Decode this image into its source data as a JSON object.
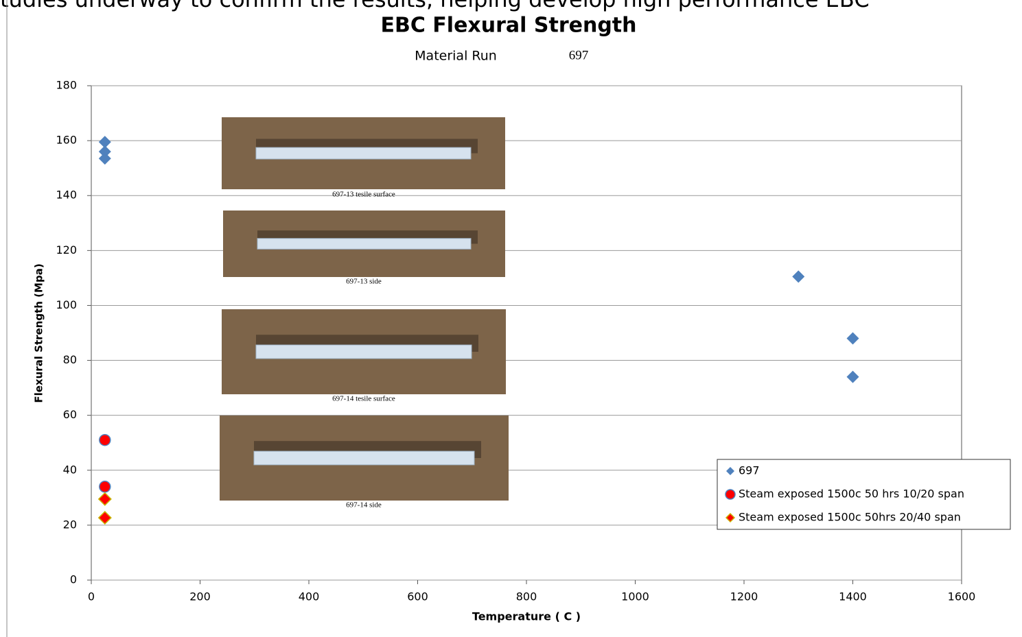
{
  "slide_text": "tudies underway to confirm the results, helping develop high performance EBC",
  "chart_data": {
    "type": "scatter",
    "title": "EBC Flexural Strength",
    "subtitle": [
      "Material  Run",
      "697"
    ],
    "x_label": "Temperature ( C )",
    "y_label": "Flexural Strength (Mpa)",
    "xlim": [
      0,
      1600
    ],
    "xticks": [
      0,
      200,
      400,
      600,
      800,
      1000,
      1200,
      1400,
      1600
    ],
    "ylim": [
      0,
      180
    ],
    "yticks": [
      0,
      20,
      40,
      60,
      80,
      100,
      120,
      140,
      160,
      180
    ],
    "grid": true,
    "legend": "lower right",
    "series": [
      {
        "name": "697",
        "color": "#4f81bd",
        "marker": "diamond",
        "x": [
          25,
          25,
          25,
          1300,
          1400,
          1400
        ],
        "values": [
          159.5,
          156,
          153.5,
          110.5,
          88,
          74
        ]
      },
      {
        "name": "Steam exposed 1500c 50 hrs 10/20 span",
        "color": "#ff0000",
        "edgecolor": "#4f81bd",
        "marker": "circle",
        "x": [
          25,
          25
        ],
        "values": [
          51,
          34
        ]
      },
      {
        "name": "Steam exposed 1500c 50hrs 20/40 span",
        "color": "#ff0000",
        "edgecolor": "#c8b400",
        "marker": "diamond",
        "x": [
          25,
          25
        ],
        "values": [
          29.5,
          22.7
        ]
      }
    ],
    "annotations": [
      "697-13 tesile surface",
      "697-13 side",
      "697-14 tesile surface",
      "697-14 side"
    ]
  }
}
